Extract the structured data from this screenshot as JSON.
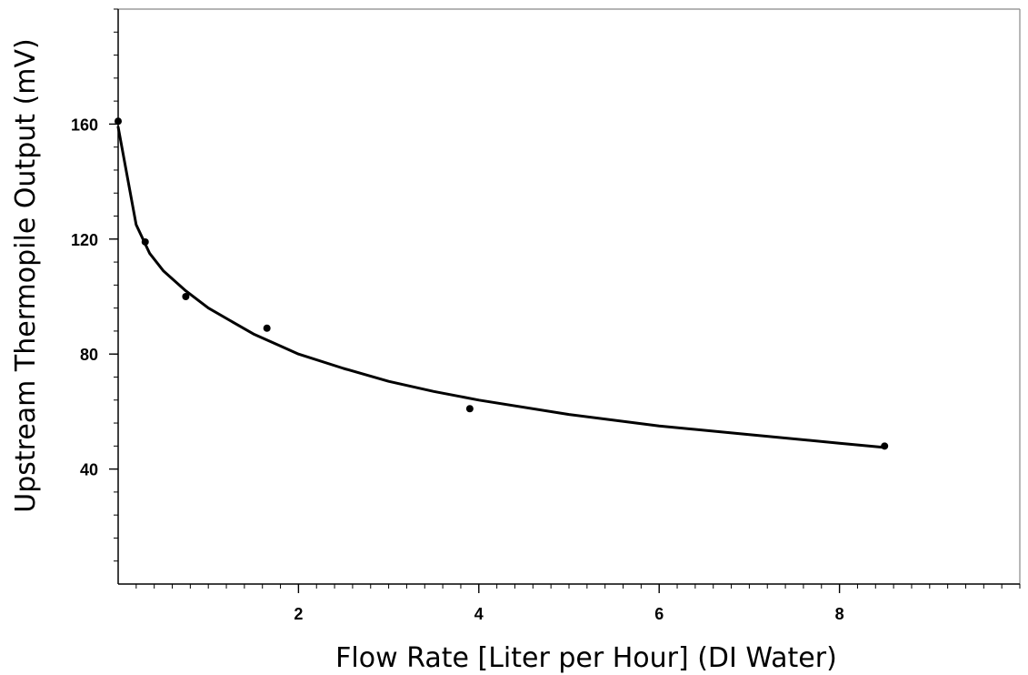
{
  "chart_data": {
    "type": "scatter",
    "title": "",
    "xlabel": "Flow Rate [Liter per Hour] (DI Water)",
    "ylabel": "Upstream Thermopile Output (mV)",
    "xlim": [
      0,
      10
    ],
    "ylim": [
      0,
      200
    ],
    "x_ticks": [
      2,
      4,
      6,
      8
    ],
    "y_ticks": [
      40,
      80,
      120,
      160
    ],
    "x_tick_labels": [
      "2",
      "4",
      "6",
      "8"
    ],
    "y_tick_labels": [
      "40",
      "80",
      "120",
      "160"
    ],
    "x_minor_step": 0.2,
    "y_minor_step": 8,
    "grid": false,
    "series": [
      {
        "kind": "points",
        "x": [
          0.0,
          0.3,
          0.75,
          1.65,
          3.9,
          8.5
        ],
        "y": [
          161,
          119,
          100,
          89,
          61,
          48
        ]
      },
      {
        "kind": "fit-line",
        "x": [
          0.0,
          0.2,
          0.35,
          0.5,
          0.75,
          1.0,
          1.5,
          2.0,
          2.5,
          3.0,
          3.5,
          4.0,
          5.0,
          6.0,
          7.0,
          8.0,
          8.5
        ],
        "y": [
          159,
          125,
          115,
          109,
          102,
          96,
          87,
          80,
          75,
          70.5,
          67,
          64,
          59,
          55,
          52,
          49,
          47.5
        ]
      }
    ],
    "colors": {
      "axis": "#000000",
      "frame": "#888888",
      "marker": "#000000",
      "line": "#000000"
    }
  }
}
